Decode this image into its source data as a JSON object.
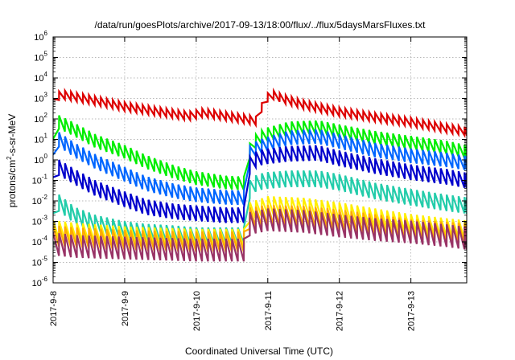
{
  "chart_data": {
    "type": "line",
    "title": "/data/run/goesPlots/archive/2017-09-13/18:00/flux/../flux/5daysMarsFluxes.txt",
    "xlabel": "Coordinated Universal Time (UTC)",
    "ylabel": {
      "base": "protons/cm",
      "sup": "2",
      "rest": "-s-sr-MeV"
    },
    "xlim": [
      0,
      5.78
    ],
    "xticks": [
      {
        "x": 0,
        "label": "2017-9-8"
      },
      {
        "x": 1,
        "label": "2017-9-9"
      },
      {
        "x": 2,
        "label": "2017-9-10"
      },
      {
        "x": 3,
        "label": "2017-9-11"
      },
      {
        "x": 4,
        "label": "2017-9-12"
      },
      {
        "x": 5,
        "label": "2017-9-13"
      }
    ],
    "yscale": "log",
    "ylim": [
      1e-06,
      1000000.0
    ],
    "yticks": [
      {
        "exp": -6,
        "label": "10",
        "sup": "-6"
      },
      {
        "exp": -5,
        "label": "10",
        "sup": "-5"
      },
      {
        "exp": -4,
        "label": "10",
        "sup": "-4"
      },
      {
        "exp": -3,
        "label": "10",
        "sup": "-3"
      },
      {
        "exp": -2,
        "label": "10",
        "sup": "-2"
      },
      {
        "exp": -1,
        "label": "10",
        "sup": "-1"
      },
      {
        "exp": 0,
        "label": "10",
        "sup": "0"
      },
      {
        "exp": 1,
        "label": "10",
        "sup": "1"
      },
      {
        "exp": 2,
        "label": "10",
        "sup": "2"
      },
      {
        "exp": 3,
        "label": "10",
        "sup": "3"
      },
      {
        "exp": 4,
        "label": "10",
        "sup": "4"
      },
      {
        "exp": 5,
        "label": "10",
        "sup": "5"
      },
      {
        "exp": 6,
        "label": "10",
        "sup": "6"
      }
    ],
    "grid": true,
    "legend": "none",
    "series": [
      {
        "color": "#dd0000",
        "x": [
          0,
          0.1,
          0.5,
          1.0,
          1.5,
          1.9,
          2.1,
          2.6,
          2.85,
          2.95,
          3.05,
          3.2,
          3.5,
          4.0,
          4.5,
          5.0,
          5.5,
          5.78
        ],
        "y": [
          600,
          1600,
          900,
          400,
          220,
          140,
          200,
          110,
          80,
          800,
          1600,
          1000,
          500,
          220,
          120,
          70,
          35,
          25
        ],
        "sawtooth": 0.42
      },
      {
        "color": "#00ee00",
        "x": [
          0,
          0.05,
          0.3,
          0.6,
          1.0,
          1.3,
          1.7,
          2.0,
          2.4,
          2.7,
          2.75,
          2.85,
          3.0,
          3.3,
          3.7,
          4.0,
          4.5,
          5.0,
          5.5,
          5.78
        ],
        "y": [
          5,
          80,
          30,
          8,
          2.5,
          0.8,
          0.25,
          0.13,
          0.08,
          0.07,
          3,
          10,
          18,
          35,
          40,
          25,
          12,
          7,
          4,
          2.5
        ],
        "sawtooth": 0.65
      },
      {
        "color": "#0066ff",
        "x": [
          0,
          0.05,
          0.3,
          0.6,
          1.0,
          1.3,
          1.7,
          2.0,
          2.4,
          2.7,
          2.75,
          2.85,
          3.0,
          3.3,
          3.7,
          4.0,
          4.5,
          5.0,
          5.5,
          5.78
        ],
        "y": [
          0.8,
          12,
          3,
          0.8,
          0.2,
          0.07,
          0.03,
          0.02,
          0.015,
          0.014,
          2,
          4,
          6,
          12,
          14,
          8,
          3,
          1.6,
          1,
          0.7
        ],
        "sawtooth": 0.7
      },
      {
        "color": "#0000cc",
        "x": [
          0,
          0.05,
          0.3,
          0.6,
          1.0,
          1.3,
          1.7,
          2.0,
          2.4,
          2.7,
          2.75,
          2.85,
          3.0,
          3.3,
          3.7,
          4.0,
          4.5,
          5.0,
          5.5,
          5.78
        ],
        "y": [
          0.06,
          0.5,
          0.15,
          0.04,
          0.012,
          0.005,
          0.003,
          0.0025,
          0.002,
          0.002,
          0.6,
          1.2,
          1.5,
          2,
          2.2,
          1.2,
          0.5,
          0.25,
          0.15,
          0.1
        ],
        "sawtooth": 0.75
      },
      {
        "color": "#22ccaa",
        "x": [
          0,
          0.05,
          0.3,
          0.6,
          1.0,
          1.3,
          1.7,
          2.0,
          2.4,
          2.7,
          2.75,
          2.85,
          3.0,
          3.3,
          3.7,
          4.0,
          4.5,
          5.0,
          5.5,
          5.78
        ],
        "y": [
          0.001,
          0.01,
          0.002,
          0.0008,
          0.0004,
          0.0003,
          0.00025,
          0.0002,
          0.0002,
          0.0002,
          0.04,
          0.08,
          0.1,
          0.12,
          0.12,
          0.08,
          0.03,
          0.015,
          0.008,
          0.006
        ],
        "sawtooth": 0.8
      },
      {
        "color": "#ffee00",
        "x": [
          0,
          0.3,
          1.0,
          2.0,
          2.7,
          2.75,
          3.0,
          3.5,
          4.0,
          4.5,
          5.0,
          5.5,
          5.78
        ],
        "y": [
          0.0004,
          0.0003,
          0.0002,
          0.00015,
          0.00015,
          0.003,
          0.006,
          0.005,
          0.003,
          0.0015,
          0.0008,
          0.0005,
          0.0004
        ],
        "sawtooth": 0.9
      },
      {
        "color": "#ffaa00",
        "x": [
          0,
          0.3,
          1.0,
          2.0,
          2.7,
          2.75,
          3.0,
          3.5,
          4.0,
          4.5,
          5.0,
          5.5,
          5.78
        ],
        "y": [
          0.0002,
          0.00016,
          0.00012,
          0.0001,
          0.0001,
          0.0015,
          0.002,
          0.0018,
          0.0012,
          0.0007,
          0.0004,
          0.0003,
          0.00025
        ],
        "sawtooth": 1.0
      },
      {
        "color": "#993366",
        "x": [
          0,
          0.3,
          1.0,
          2.0,
          2.7,
          2.75,
          3.0,
          3.5,
          4.0,
          4.5,
          5.0,
          5.5,
          5.78
        ],
        "y": [
          8e-05,
          6e-05,
          5e-05,
          4e-05,
          4e-05,
          0.0008,
          0.0012,
          0.001,
          0.0006,
          0.0004,
          0.0003,
          0.0002,
          0.00015
        ],
        "sawtooth": 1.1
      }
    ]
  }
}
